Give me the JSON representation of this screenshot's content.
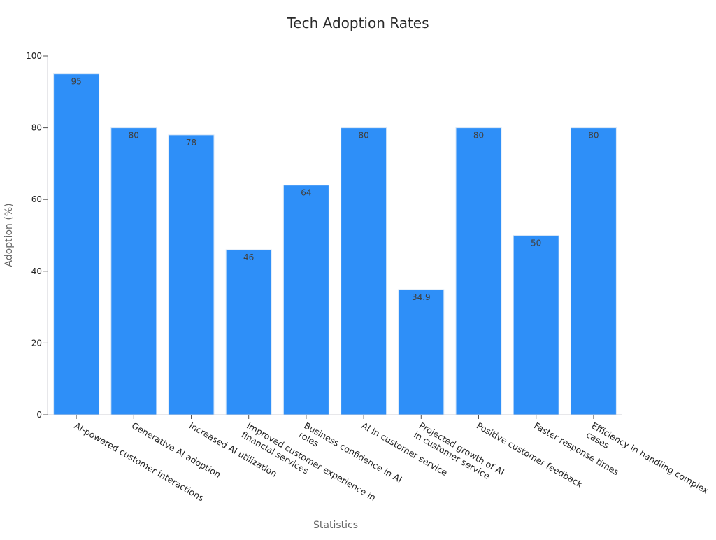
{
  "chart_data": {
    "type": "bar",
    "title": "Tech Adoption Rates",
    "xlabel": "Statistics",
    "ylabel": "Adoption (%)",
    "ylim": [
      0,
      100
    ],
    "yticks": [
      0,
      20,
      40,
      60,
      80,
      100
    ],
    "grid": false,
    "bar_color": "#2e8ff8",
    "categories": [
      "AI-powered customer interactions",
      "Generative AI adoption",
      "Increased AI utilization",
      "Improved customer experience in financial services",
      "Business confidence in AI roles",
      "AI in customer service",
      "Projected growth of AI in customer service",
      "Positive customer feedback",
      "Faster response times",
      "Efficiency in handling complex cases"
    ],
    "category_label_lines": [
      [
        "AI-powered customer interactions"
      ],
      [
        "Generative AI adoption"
      ],
      [
        "Increased AI utilization"
      ],
      [
        "Improved customer experience in",
        "financial services"
      ],
      [
        "Business confidence in AI",
        "roles"
      ],
      [
        "AI in customer service"
      ],
      [
        "Projected growth of AI",
        "in customer service"
      ],
      [
        "Positive customer feedback"
      ],
      [
        "Faster response times"
      ],
      [
        "Efficiency in handling complex",
        "cases"
      ]
    ],
    "values": [
      95,
      80,
      78,
      46,
      64,
      80,
      34.9,
      80,
      50,
      80
    ],
    "data_labels": [
      "95",
      "80",
      "78",
      "46",
      "64",
      "80",
      "34.9",
      "80",
      "50",
      "80"
    ]
  }
}
